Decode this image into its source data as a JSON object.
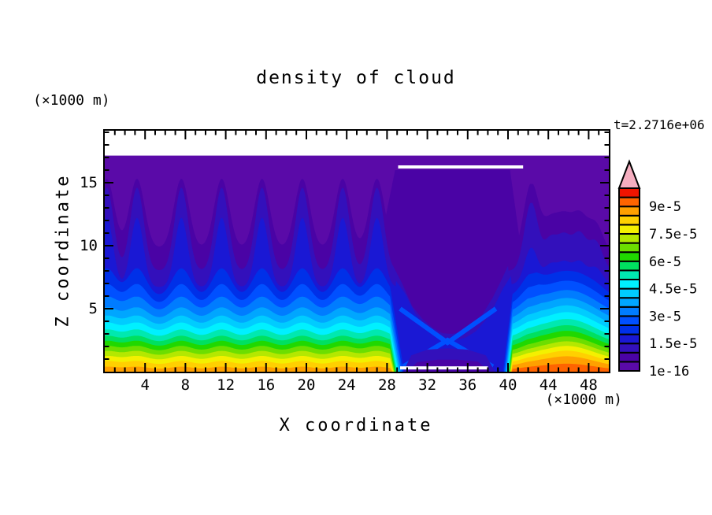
{
  "title": "density of cloud",
  "time_label": "t=2.2716e+06",
  "x_axis": {
    "label": "X coordinate",
    "unit": "(×1000 m)",
    "min": 0,
    "max": 50,
    "major_ticks": [
      4,
      8,
      12,
      16,
      20,
      24,
      28,
      32,
      36,
      40,
      44,
      48
    ],
    "minor_step": 1
  },
  "z_axis": {
    "label": "Z coordinate",
    "unit": "(×1000 m)",
    "min": 0,
    "max": 19.125,
    "major_ticks": [
      5,
      10,
      15
    ],
    "minor_step": 1
  },
  "colorbar": {
    "boxes": 20,
    "arrow_color": "#F5AEC0",
    "ticks": [
      {
        "label": "1e-16",
        "boundary": 0
      },
      {
        "label": "1.5e-5",
        "boundary": 3
      },
      {
        "label": "3e-5",
        "boundary": 6
      },
      {
        "label": "4.5e-5",
        "boundary": 9
      },
      {
        "label": "6e-5",
        "boundary": 12
      },
      {
        "label": "7.5e-5",
        "boundary": 15
      },
      {
        "label": "9e-5",
        "boundary": 18
      }
    ]
  },
  "chart_data": {
    "type": "filled_contour",
    "field": "density of cloud",
    "contour_min": "1e-16",
    "contour_interval": "5e-6",
    "x_range": [
      0,
      50
    ],
    "z_range": [
      0,
      19.125
    ],
    "background_field_top_z": 17.15,
    "palette": [
      "#5A0AA8",
      "#4A03A5",
      "#3310BB",
      "#1A18D4",
      "#0030E8",
      "#0050FF",
      "#007CFF",
      "#00A6FF",
      "#00CCFF",
      "#00F0FF",
      "#00E8B0",
      "#00E060",
      "#20D800",
      "#6CDE00",
      "#B4E800",
      "#F4F000",
      "#FFD000",
      "#FFA000",
      "#FF6400",
      "#F01400"
    ],
    "peaks_left": [
      [
        0.2,
        1
      ],
      [
        3.2,
        1
      ],
      [
        7.6,
        1
      ],
      [
        11.6,
        1
      ],
      [
        15.6,
        1
      ],
      [
        19.6,
        1
      ],
      [
        23.6,
        1
      ],
      [
        27.0,
        1
      ]
    ],
    "peaks_right": [
      [
        42.3,
        1
      ],
      [
        44.2,
        0.45
      ],
      [
        45.6,
        0.47
      ],
      [
        47.1,
        0.52
      ],
      [
        48.7,
        0.42
      ]
    ],
    "valley": {
      "cliff_left": 28.3,
      "cliff_right": 40.45,
      "bulge_center": 45.8,
      "bulge_width": 3.2
    },
    "bands": [
      {
        "color": "#4A03A5",
        "bL": 9.8,
        "aL": 5.5,
        "w": 1.05,
        "bR": 9.3,
        "aR": 5.6,
        "gz": 0,
        "flat": 16.0,
        "xl": 28.8,
        "xr": 40.2
      },
      {
        "color": "#3310BB",
        "bL": 8.0,
        "aL": 6.6,
        "w": 0.95,
        "bR": 8.0,
        "aR": 5.4,
        "gz": 0,
        "vc": [
          [
            28.6,
            8.4
          ],
          [
            29.5,
            7.0
          ],
          [
            30.5,
            5.2
          ],
          [
            31.5,
            4.2
          ],
          [
            32.5,
            3.5
          ],
          [
            33.5,
            3.05
          ],
          [
            34.5,
            3.0
          ],
          [
            35.5,
            3.2
          ],
          [
            36.5,
            3.7
          ],
          [
            37.5,
            4.6
          ],
          [
            38.5,
            5.9
          ],
          [
            39.3,
            7.2
          ],
          [
            40.0,
            8.4
          ]
        ]
      },
      {
        "color": "#1A18D4",
        "bL": 6.7,
        "aL": 5.5,
        "w": 0.9,
        "bR": 6.9,
        "aR": 2.8,
        "gz": 0.4,
        "vc": [
          [
            28.9,
            7.2
          ],
          [
            29.8,
            6.2
          ],
          [
            30.8,
            4.6
          ],
          [
            31.8,
            3.7
          ],
          [
            32.8,
            3.0
          ],
          [
            33.8,
            2.5
          ],
          [
            34.8,
            2.5
          ],
          [
            35.8,
            2.7
          ],
          [
            36.8,
            3.2
          ],
          [
            37.8,
            4.1
          ],
          [
            38.7,
            5.3
          ],
          [
            39.5,
            6.6
          ],
          [
            40.3,
            7.6
          ]
        ]
      },
      {
        "color": "#0030E8",
        "bL": 5.9,
        "aL": 2.3,
        "w": 1.3,
        "bR": 5.9,
        "aR": 1.6,
        "gz": 0.9,
        "xl": 29.7,
        "xr": 39.5
      },
      {
        "color": "#0050FF",
        "bL": 5.25,
        "aL": 1.7,
        "w": 1.4,
        "bR": 5.25,
        "aR": 1.2,
        "gz": 1.0,
        "xl": 29.55,
        "xr": 39.6
      },
      {
        "color": "#007CFF",
        "bL": 4.65,
        "aL": 1.3,
        "w": 1.5,
        "bR": 4.65,
        "aR": 0.9,
        "gz": 1.05,
        "xl": 29.42,
        "xr": 39.7
      },
      {
        "color": "#00A6FF",
        "bL": 4.1,
        "aL": 1.0,
        "w": 1.5,
        "bR": 4.1,
        "aR": 0.75,
        "gz": 1.1,
        "xl": 29.3,
        "xr": 39.78
      },
      {
        "color": "#00CCFF",
        "bL": 3.6,
        "aL": 0.85,
        "w": 1.5,
        "bR": 3.6,
        "aR": 0.65,
        "gz": 1.1,
        "xl": 29.2,
        "xr": 39.86
      },
      {
        "color": "#00F0FF",
        "bL": 3.15,
        "aL": 0.75,
        "w": 1.5,
        "bR": 3.15,
        "aR": 0.55,
        "gz": 1.1,
        "xl": 29.1,
        "xr": 39.93
      },
      {
        "color": "#00E8B0",
        "bL": 2.7,
        "aL": 0.65,
        "w": 1.5,
        "bR": 2.7,
        "aR": 0.5,
        "gz": 1.05,
        "xl": 29.0,
        "xr": 40.0
      },
      {
        "color": "#00E060",
        "bL": 2.3,
        "aL": 0.55,
        "w": 1.5,
        "bR": 2.3,
        "aR": 0.45,
        "gz": 1.0,
        "xl": 28.92,
        "xr": 40.06
      },
      {
        "color": "#20D800",
        "bL": 1.95,
        "aL": 0.5,
        "w": 1.5,
        "bR": 1.95,
        "aR": 0.4,
        "gz": 0.95,
        "xl": 28.84,
        "xr": 40.11
      },
      {
        "color": "#6CDE00",
        "bL": 1.6,
        "aL": 0.45,
        "w": 1.5,
        "bR": 1.6,
        "aR": 0.35,
        "gz": 0.9,
        "xl": 28.77,
        "xr": 40.16
      },
      {
        "color": "#B4E800",
        "bL": 1.25,
        "aL": 0.4,
        "w": 1.5,
        "bR": 1.3,
        "aR": 0.3,
        "gz": 0.85,
        "xl": 28.7,
        "xr": 40.21
      },
      {
        "color": "#F4F000",
        "bL": 0.9,
        "aL": 0.35,
        "w": 1.5,
        "bR": 1.0,
        "aR": 0.28,
        "gz": 0.8,
        "xl": 28.64,
        "xr": 40.26
      },
      {
        "color": "#FFD000",
        "bL": 0.55,
        "aL": 0.3,
        "w": 1.5,
        "bR": 0.7,
        "aR": 0.25,
        "gz": 0.75,
        "xl": 28.58,
        "xr": 40.3
      },
      {
        "color": "#FFA000",
        "bL": 0.2,
        "aL": 0.2,
        "w": 1.5,
        "bR": 0.45,
        "aR": 0.2,
        "gz": 0.6,
        "xl": 28.52,
        "xr": 40.34
      },
      {
        "color": "#FF6400",
        "bL": -0.5,
        "aL": 0.1,
        "w": 1.5,
        "bR": 0.18,
        "aR": 0.12,
        "gz": 0.35,
        "xl": 28.45,
        "xr": 40.4
      }
    ],
    "overlays": [
      {
        "type": "stroke",
        "color": "#0050FF",
        "width": 6,
        "points": [
          [
            29.3,
            5.0
          ],
          [
            34.0,
            2.3
          ],
          [
            38.8,
            5.0
          ]
        ]
      },
      {
        "type": "stroke",
        "color": "#0050FF",
        "width": 6,
        "points": [
          [
            29.6,
            0.4
          ],
          [
            34.0,
            2.5
          ],
          [
            38.5,
            0.4
          ]
        ]
      },
      {
        "type": "strip",
        "color": "#3310BB",
        "points": [
          [
            29.6,
            0
          ],
          [
            30.4,
            1.3
          ],
          [
            32,
            1.75
          ],
          [
            34,
            1.85
          ],
          [
            36,
            1.75
          ],
          [
            37.8,
            1.3
          ],
          [
            38.7,
            0
          ]
        ]
      },
      {
        "type": "strip",
        "color": "#4A03A5",
        "points": [
          [
            30.0,
            0
          ],
          [
            31.0,
            0.75
          ],
          [
            33,
            0.95
          ],
          [
            35,
            0.95
          ],
          [
            37,
            0.8
          ],
          [
            38.2,
            0
          ]
        ]
      }
    ],
    "white_segments": [
      {
        "x1": 29.1,
        "x2": 41.5,
        "z": 16.25
      },
      {
        "x1": 29.3,
        "x2": 38.0,
        "z": 0.3
      }
    ]
  }
}
